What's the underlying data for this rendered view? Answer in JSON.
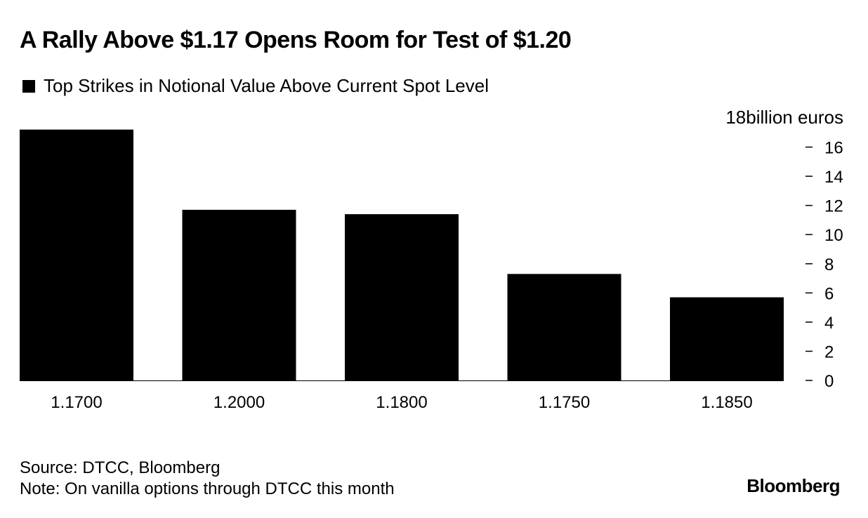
{
  "chart_data": {
    "type": "bar",
    "title": "A Rally Above $1.17 Opens Room for Test of $1.20",
    "legend": "Top Strikes in Notional Value Above Current Spot Level",
    "unit_label": "18billion euros",
    "categories": [
      "1.1700",
      "1.2000",
      "1.1800",
      "1.1750",
      "1.1850"
    ],
    "series": [
      {
        "name": "Top Strikes in Notional Value Above Current Spot Level",
        "values": [
          17.2,
          11.7,
          11.4,
          7.3,
          5.7
        ]
      }
    ],
    "ylim": [
      0,
      18
    ],
    "y_ticks": [
      0,
      2,
      4,
      6,
      8,
      10,
      12,
      14,
      16
    ],
    "y_axis_side": "right",
    "grid": false,
    "legend_position": "top-left",
    "bar_color": "#000000"
  },
  "footer": {
    "source": "Source: DTCC, Bloomberg",
    "note": "Note: On vanilla options through DTCC this month"
  },
  "brand": "Bloomberg"
}
